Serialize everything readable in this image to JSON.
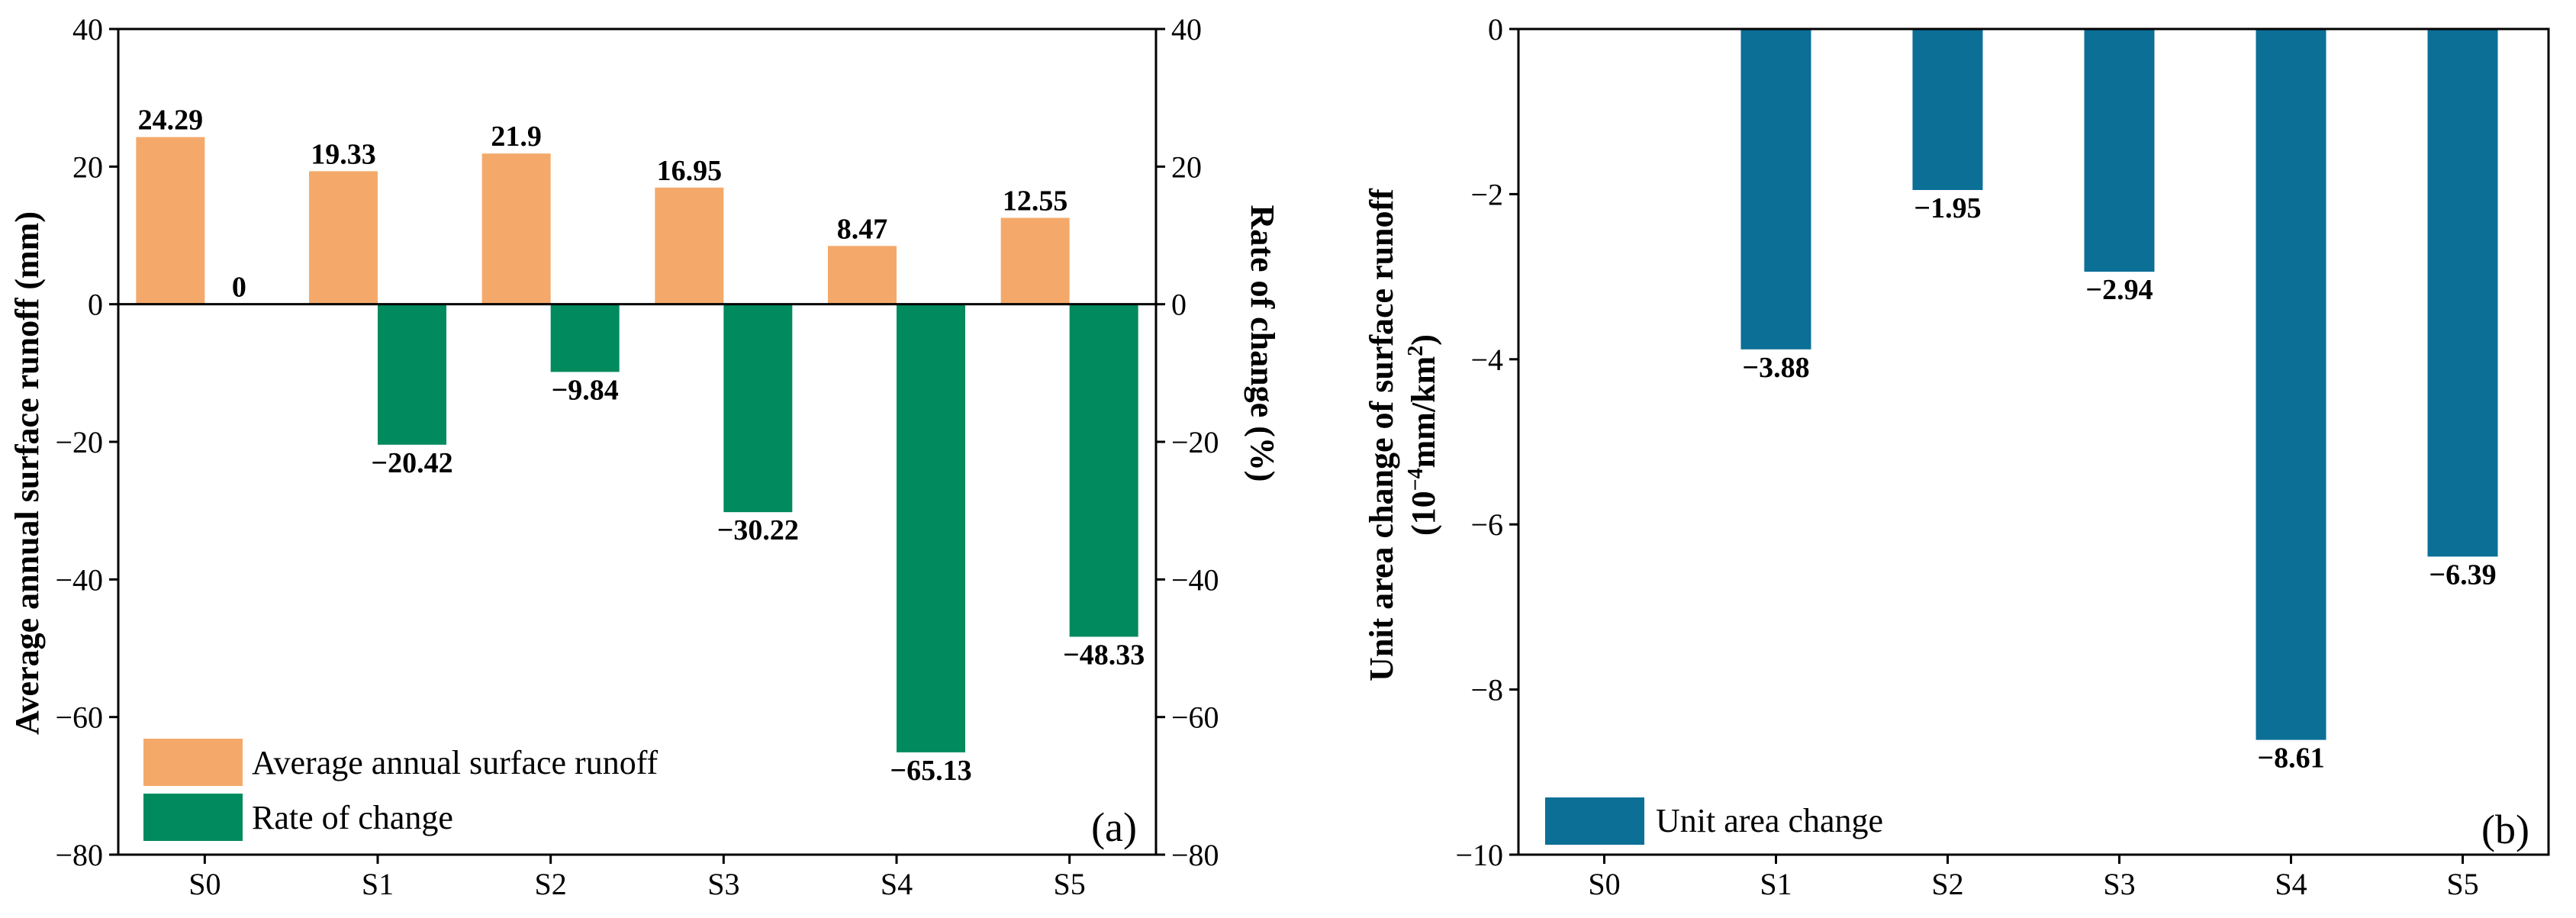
{
  "chart_data": [
    {
      "type": "bar",
      "panel_label": "(a)",
      "categories": [
        "S0",
        "S1",
        "S2",
        "S3",
        "S4",
        "S5"
      ],
      "series": [
        {
          "name": "Average annual surface runoff",
          "axis": "left",
          "color": "#f4a96a",
          "values": [
            24.29,
            19.33,
            21.9,
            16.95,
            8.47,
            12.55
          ],
          "labels": [
            "24.29",
            "19.33",
            "21.9",
            "16.95",
            "8.47",
            "12.55"
          ]
        },
        {
          "name": "Rate of change",
          "axis": "right",
          "color": "#008a5e",
          "values": [
            0,
            -20.42,
            -9.84,
            -30.22,
            -65.13,
            -48.33
          ],
          "labels": [
            "0",
            "−20.42",
            "−9.84",
            "−30.22",
            "−65.13",
            "−48.33"
          ]
        }
      ],
      "ylabel": "Average annual surface runoff (mm)",
      "y2label": "Rate of change (%)",
      "ylim": [
        -80,
        40
      ],
      "y2lim": [
        -80,
        40
      ],
      "yticks": [
        40,
        20,
        0,
        -20,
        -40,
        -60,
        -80
      ],
      "ytick_labels": [
        "40",
        "20",
        "0",
        "−20",
        "−40",
        "−60",
        "−80"
      ],
      "y2ticks": [
        40,
        20,
        0,
        -20,
        -40,
        -60,
        -80
      ],
      "y2tick_labels": [
        "40",
        "20",
        "0",
        "−20",
        "−40",
        "−60",
        "−80"
      ],
      "legend_position": "bottom-left"
    },
    {
      "type": "bar",
      "panel_label": "(b)",
      "categories": [
        "S0",
        "S1",
        "S2",
        "S3",
        "S4",
        "S5"
      ],
      "series": [
        {
          "name": "Unit area change",
          "color": "#0b6f96",
          "values": [
            null,
            -3.88,
            -1.95,
            -2.94,
            -8.61,
            -6.39
          ],
          "labels": [
            null,
            "−3.88",
            "−1.95",
            "−2.94",
            "−8.61",
            "−6.39"
          ]
        }
      ],
      "ylabel_line1": "Unit area change of surface runoff",
      "ylabel_line2_pre": "(10",
      "ylabel_line2_sup1": "−4",
      "ylabel_line2_mid": "mm/km",
      "ylabel_line2_sup2": "2",
      "ylabel_line2_post": ")",
      "ylim": [
        -10,
        0
      ],
      "yticks": [
        0,
        -2,
        -4,
        -6,
        -8,
        -10
      ],
      "ytick_labels": [
        "0",
        "−2",
        "−4",
        "−6",
        "−8",
        "−10"
      ],
      "legend_position": "bottom-left"
    }
  ]
}
